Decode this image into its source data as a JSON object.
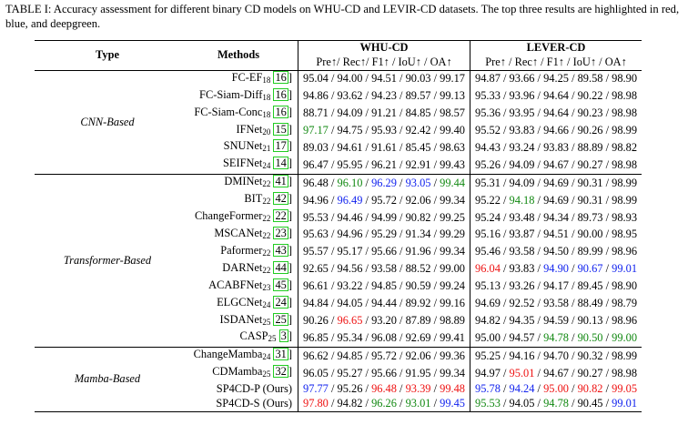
{
  "caption": "TABLE I: Accuracy assessment for different binary CD models on WHU-CD and LEVIR-CD datasets. The top three results are highlighted in red, blue, and deepgreen.",
  "headers": {
    "type": "Type",
    "methods": "Methods",
    "whu": "WHU-CD",
    "levir": "LEVER-CD",
    "metrics": "Pre↑/ Rec↑/ F1↑ / IoU↑ / OA↑",
    "metrics2": "Pre↑ / Rec↑ / F1↑ / IoU↑ / OA↑"
  },
  "groups": [
    {
      "type": "CNN-Based",
      "rows": [
        {
          "name": "FC-EF",
          "sub": "18",
          "cite": "16",
          "whu": [
            [
              "95.04",
              ""
            ],
            [
              "94.00",
              ""
            ],
            [
              "94.51",
              ""
            ],
            [
              "90.03",
              ""
            ],
            [
              "99.17",
              ""
            ]
          ],
          "levir": [
            [
              "94.87",
              ""
            ],
            [
              "93.66",
              ""
            ],
            [
              "94.25",
              ""
            ],
            [
              "89.58",
              ""
            ],
            [
              "98.90",
              ""
            ]
          ]
        },
        {
          "name": "FC-Siam-Diff",
          "sub": "18",
          "cite": "16",
          "whu": [
            [
              "94.86",
              ""
            ],
            [
              "93.62",
              ""
            ],
            [
              "94.23",
              ""
            ],
            [
              "89.57",
              ""
            ],
            [
              "99.13",
              ""
            ]
          ],
          "levir": [
            [
              "95.33",
              ""
            ],
            [
              "93.96",
              ""
            ],
            [
              "94.64",
              ""
            ],
            [
              "90.22",
              ""
            ],
            [
              "98.98",
              ""
            ]
          ]
        },
        {
          "name": "FC-Siam-Conc",
          "sub": "18",
          "cite": "16",
          "whu": [
            [
              "88.71",
              ""
            ],
            [
              "94.09",
              ""
            ],
            [
              "91.21",
              ""
            ],
            [
              "84.85",
              ""
            ],
            [
              "98.57",
              ""
            ]
          ],
          "levir": [
            [
              "95.36",
              ""
            ],
            [
              "93.95",
              ""
            ],
            [
              "94.64",
              ""
            ],
            [
              "90.23",
              ""
            ],
            [
              "98.98",
              ""
            ]
          ]
        },
        {
          "name": "IFNet",
          "sub": "20",
          "cite": "15",
          "whu": [
            [
              "97.17",
              "green"
            ],
            [
              "94.75",
              ""
            ],
            [
              "95.93",
              ""
            ],
            [
              "92.42",
              ""
            ],
            [
              "99.40",
              ""
            ]
          ],
          "levir": [
            [
              "95.52",
              ""
            ],
            [
              "93.83",
              ""
            ],
            [
              "94.66",
              ""
            ],
            [
              "90.26",
              ""
            ],
            [
              "98.99",
              ""
            ]
          ]
        },
        {
          "name": "SNUNet",
          "sub": "21",
          "cite": "17",
          "whu": [
            [
              "89.03",
              ""
            ],
            [
              "94.61",
              ""
            ],
            [
              "91.61",
              ""
            ],
            [
              "85.45",
              ""
            ],
            [
              "98.63",
              ""
            ]
          ],
          "levir": [
            [
              "94.43",
              ""
            ],
            [
              "93.24",
              ""
            ],
            [
              "93.83",
              ""
            ],
            [
              "88.89",
              ""
            ],
            [
              "98.82",
              ""
            ]
          ]
        },
        {
          "name": "SEIFNet",
          "sub": "24",
          "cite": "14",
          "whu": [
            [
              "96.47",
              ""
            ],
            [
              "95.95",
              ""
            ],
            [
              "96.21",
              ""
            ],
            [
              "92.91",
              ""
            ],
            [
              "99.43",
              ""
            ]
          ],
          "levir": [
            [
              "95.26",
              ""
            ],
            [
              "94.09",
              ""
            ],
            [
              "94.67",
              ""
            ],
            [
              "90.27",
              ""
            ],
            [
              "98.98",
              ""
            ]
          ]
        }
      ]
    },
    {
      "type": "Transformer-Based",
      "rows": [
        {
          "name": "DMINet",
          "sub": "22",
          "cite": "41",
          "whu": [
            [
              "96.48",
              ""
            ],
            [
              "96.10",
              "green"
            ],
            [
              "96.29",
              "blue"
            ],
            [
              "93.05",
              "blue"
            ],
            [
              "99.44",
              "green"
            ]
          ],
          "levir": [
            [
              "95.31",
              ""
            ],
            [
              "94.09",
              ""
            ],
            [
              "94.69",
              ""
            ],
            [
              "90.31",
              ""
            ],
            [
              "98.99",
              ""
            ]
          ]
        },
        {
          "name": "BIT",
          "sub": "22",
          "cite": "42",
          "whu": [
            [
              "94.96",
              ""
            ],
            [
              "96.49",
              "blue"
            ],
            [
              "95.72",
              ""
            ],
            [
              "92.06",
              ""
            ],
            [
              "99.34",
              ""
            ]
          ],
          "levir": [
            [
              "95.22",
              ""
            ],
            [
              "94.18",
              "green"
            ],
            [
              "94.69",
              ""
            ],
            [
              "90.31",
              ""
            ],
            [
              "98.99",
              ""
            ]
          ]
        },
        {
          "name": "ChangeFormer",
          "sub": "22",
          "cite": "22",
          "whu": [
            [
              "95.53",
              ""
            ],
            [
              "94.46",
              ""
            ],
            [
              "94.99",
              ""
            ],
            [
              "90.82",
              ""
            ],
            [
              "99.25",
              ""
            ]
          ],
          "levir": [
            [
              "95.24",
              ""
            ],
            [
              "93.48",
              ""
            ],
            [
              "94.34",
              ""
            ],
            [
              "89.73",
              ""
            ],
            [
              "98.93",
              ""
            ]
          ]
        },
        {
          "name": "MSCANet",
          "sub": "22",
          "cite": "23",
          "whu": [
            [
              "95.63",
              ""
            ],
            [
              "94.96",
              ""
            ],
            [
              "95.29",
              ""
            ],
            [
              "91.34",
              ""
            ],
            [
              "99.29",
              ""
            ]
          ],
          "levir": [
            [
              "95.16",
              ""
            ],
            [
              "93.87",
              ""
            ],
            [
              "94.51",
              ""
            ],
            [
              "90.00",
              ""
            ],
            [
              "98.95",
              ""
            ]
          ]
        },
        {
          "name": "Paformer",
          "sub": "22",
          "cite": "43",
          "whu": [
            [
              "95.57",
              ""
            ],
            [
              "95.17",
              ""
            ],
            [
              "95.66",
              ""
            ],
            [
              "91.96",
              ""
            ],
            [
              "99.34",
              ""
            ]
          ],
          "levir": [
            [
              "95.46",
              ""
            ],
            [
              "93.58",
              ""
            ],
            [
              "94.50",
              ""
            ],
            [
              "89.99",
              ""
            ],
            [
              "98.96",
              ""
            ]
          ]
        },
        {
          "name": "DARNet",
          "sub": "22",
          "cite": "44",
          "whu": [
            [
              "92.65",
              ""
            ],
            [
              "94.56",
              ""
            ],
            [
              "93.58",
              ""
            ],
            [
              "88.52",
              ""
            ],
            [
              "99.00",
              ""
            ]
          ],
          "levir": [
            [
              "96.04",
              "red"
            ],
            [
              "93.83",
              ""
            ],
            [
              "94.90",
              "blue"
            ],
            [
              "90.67",
              "blue"
            ],
            [
              "99.01",
              "blue"
            ]
          ]
        },
        {
          "name": "ACABFNet",
          "sub": "23",
          "cite": "45",
          "whu": [
            [
              "96.61",
              ""
            ],
            [
              "93.22",
              ""
            ],
            [
              "94.85",
              ""
            ],
            [
              "90.59",
              ""
            ],
            [
              "99.24",
              ""
            ]
          ],
          "levir": [
            [
              "95.13",
              ""
            ],
            [
              "93.26",
              ""
            ],
            [
              "94.17",
              ""
            ],
            [
              "89.45",
              ""
            ],
            [
              "98.90",
              ""
            ]
          ]
        },
        {
          "name": "ELGCNet",
          "sub": "24",
          "cite": "24",
          "whu": [
            [
              "94.84",
              ""
            ],
            [
              "94.05",
              ""
            ],
            [
              "94.44",
              ""
            ],
            [
              "89.92",
              ""
            ],
            [
              "99.16",
              ""
            ]
          ],
          "levir": [
            [
              "94.69",
              ""
            ],
            [
              "92.52",
              ""
            ],
            [
              "93.58",
              ""
            ],
            [
              "88.49",
              ""
            ],
            [
              "98.79",
              ""
            ]
          ]
        },
        {
          "name": "ISDANet",
          "sub": "25",
          "cite": "25",
          "whu": [
            [
              "90.26",
              ""
            ],
            [
              "96.65",
              "red"
            ],
            [
              "93.20",
              ""
            ],
            [
              "87.89",
              ""
            ],
            [
              "98.89",
              ""
            ]
          ],
          "levir": [
            [
              "94.82",
              ""
            ],
            [
              "94.35",
              ""
            ],
            [
              "94.59",
              ""
            ],
            [
              "90.13",
              ""
            ],
            [
              "98.96",
              ""
            ]
          ]
        },
        {
          "name": "CASP",
          "sub": "25",
          "cite": "3",
          "whu": [
            [
              "96.85",
              ""
            ],
            [
              "95.34",
              ""
            ],
            [
              "96.08",
              ""
            ],
            [
              "92.69",
              ""
            ],
            [
              "99.41",
              ""
            ]
          ],
          "levir": [
            [
              "95.00",
              ""
            ],
            [
              "94.57",
              ""
            ],
            [
              "94.78",
              "green"
            ],
            [
              "90.50",
              "green"
            ],
            [
              "99.00",
              "green"
            ]
          ]
        }
      ]
    },
    {
      "type": "Mamba-Based",
      "rows": [
        {
          "name": "ChangeMamba",
          "sub": "24",
          "cite": "31",
          "whu": [
            [
              "96.62",
              ""
            ],
            [
              "94.85",
              ""
            ],
            [
              "95.72",
              ""
            ],
            [
              "92.06",
              ""
            ],
            [
              "99.36",
              ""
            ]
          ],
          "levir": [
            [
              "95.25",
              ""
            ],
            [
              "94.16",
              ""
            ],
            [
              "94.70",
              ""
            ],
            [
              "90.32",
              ""
            ],
            [
              "98.99",
              ""
            ]
          ]
        },
        {
          "name": "CDMamba",
          "sub": "25",
          "cite": "32",
          "whu": [
            [
              "96.05",
              ""
            ],
            [
              "95.27",
              ""
            ],
            [
              "95.66",
              ""
            ],
            [
              "91.95",
              ""
            ],
            [
              "99.34",
              ""
            ]
          ],
          "levir": [
            [
              "94.97",
              ""
            ],
            [
              "95.01",
              "red"
            ],
            [
              "94.67",
              ""
            ],
            [
              "90.27",
              ""
            ],
            [
              "98.98",
              ""
            ]
          ]
        },
        {
          "name": "SP4CD-P (Ours)",
          "sub": "",
          "cite": "",
          "whu": [
            [
              "97.77",
              "blue"
            ],
            [
              "95.26",
              ""
            ],
            [
              "96.48",
              "red"
            ],
            [
              "93.39",
              "red"
            ],
            [
              "99.48",
              "red"
            ]
          ],
          "levir": [
            [
              "95.78",
              "blue"
            ],
            [
              "94.24",
              "blue"
            ],
            [
              "95.00",
              "red"
            ],
            [
              "90.82",
              "red"
            ],
            [
              "99.05",
              "red"
            ]
          ]
        },
        {
          "name": "SP4CD-S (Ours)",
          "sub": "",
          "cite": "",
          "whu": [
            [
              "97.80",
              "red"
            ],
            [
              "94.82",
              ""
            ],
            [
              "96.26",
              "green"
            ],
            [
              "93.01",
              "green"
            ],
            [
              "99.45",
              "blue"
            ]
          ],
          "levir": [
            [
              "95.53",
              "green"
            ],
            [
              "94.05",
              ""
            ],
            [
              "94.78",
              "green"
            ],
            [
              "90.45",
              ""
            ],
            [
              "99.01",
              "blue"
            ]
          ]
        }
      ]
    }
  ]
}
